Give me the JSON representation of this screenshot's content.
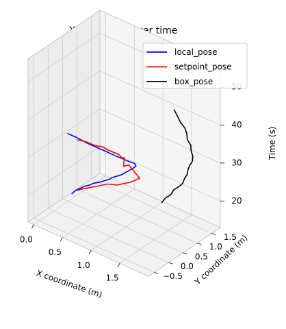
{
  "chart_data": {
    "type": "line",
    "projection": "3d",
    "title": "X, Y location over time",
    "xlabel": "X coordinate (m)",
    "ylabel": "Y coordinate (m)",
    "zlabel": "Time (s)",
    "xlim": [
      -0.1,
      2.0
    ],
    "ylim": [
      -0.7,
      1.8
    ],
    "zlim": [
      13,
      56
    ],
    "x_ticks": [
      "0.0",
      "0.5",
      "1.0",
      "1.5"
    ],
    "y_ticks": [
      "−0.5",
      "0.0",
      "0.5",
      "1.0",
      "1.5"
    ],
    "z_ticks": [
      "20",
      "30",
      "40",
      "50"
    ],
    "grid": true,
    "legend_position": "top-right",
    "series": [
      {
        "name": "local_pose",
        "color": "#0000ff",
        "points": [
          [
            0.04,
            0.55,
            15.0
          ],
          [
            0.06,
            0.63,
            15.6
          ],
          [
            0.1,
            0.72,
            16.0
          ],
          [
            0.13,
            0.8,
            16.3
          ],
          [
            0.18,
            0.86,
            16.6
          ],
          [
            0.22,
            0.94,
            17.0
          ],
          [
            0.28,
            1.0,
            17.3
          ],
          [
            0.33,
            1.02,
            17.8
          ],
          [
            0.38,
            1.05,
            18.3
          ],
          [
            0.42,
            1.09,
            18.6
          ],
          [
            0.45,
            1.12,
            19.1
          ],
          [
            0.5,
            1.18,
            19.5
          ],
          [
            0.55,
            1.28,
            19.8
          ],
          [
            0.58,
            1.32,
            20.3
          ],
          [
            0.62,
            1.39,
            20.8
          ],
          [
            0.66,
            1.46,
            21.4
          ],
          [
            0.68,
            1.5,
            21.8
          ],
          [
            0.66,
            1.49,
            22.4
          ],
          [
            0.63,
            1.43,
            22.8
          ],
          [
            0.59,
            1.36,
            23.3
          ],
          [
            0.55,
            1.28,
            24.0
          ],
          [
            0.51,
            1.2,
            24.6
          ],
          [
            0.47,
            1.12,
            25.3
          ],
          [
            0.43,
            1.04,
            26.0
          ],
          [
            0.39,
            0.96,
            26.7
          ],
          [
            0.35,
            0.88,
            27.3
          ],
          [
            0.31,
            0.8,
            28.0
          ],
          [
            0.27,
            0.72,
            28.7
          ],
          [
            0.23,
            0.64,
            29.4
          ],
          [
            0.19,
            0.57,
            30.1
          ],
          [
            0.14,
            0.5,
            30.8
          ],
          [
            0.1,
            0.43,
            31.4
          ],
          [
            0.06,
            0.36,
            32.0
          ]
        ]
      },
      {
        "name": "setpoint_pose",
        "color": "#ff0000",
        "points": [
          [
            0.09,
            0.64,
            15.8
          ],
          [
            0.18,
            0.66,
            16.7
          ],
          [
            0.29,
            0.83,
            17.1
          ],
          [
            0.43,
            1.0,
            17.9
          ],
          [
            0.58,
            1.05,
            18.4
          ],
          [
            0.72,
            1.23,
            19.2
          ],
          [
            0.8,
            1.39,
            19.9
          ],
          [
            0.56,
            1.49,
            21.3
          ],
          [
            0.55,
            1.33,
            21.7
          ],
          [
            0.55,
            1.35,
            23.9
          ],
          [
            0.58,
            1.23,
            24.5
          ],
          [
            0.52,
            1.21,
            25.3
          ],
          [
            0.41,
            1.03,
            26.7
          ],
          [
            0.36,
            0.99,
            27.3
          ],
          [
            0.3,
            0.85,
            27.9
          ],
          [
            0.23,
            0.65,
            29.5
          ],
          [
            0.15,
            0.52,
            30.1
          ]
        ]
      },
      {
        "name": "box_pose",
        "color": "#000000",
        "points": [
          [
            1.07,
            1.62,
            14.2
          ],
          [
            1.12,
            1.65,
            15.6
          ],
          [
            1.2,
            1.68,
            16.9
          ],
          [
            1.24,
            1.69,
            18.3
          ],
          [
            1.32,
            1.72,
            19.6
          ],
          [
            1.39,
            1.71,
            21.0
          ],
          [
            1.42,
            1.71,
            22.4
          ],
          [
            1.46,
            1.72,
            23.7
          ],
          [
            1.48,
            1.71,
            25.1
          ],
          [
            1.5,
            1.74,
            26.4
          ],
          [
            1.55,
            1.73,
            27.8
          ],
          [
            1.55,
            1.74,
            29.1
          ],
          [
            1.53,
            1.72,
            30.5
          ],
          [
            1.52,
            1.73,
            31.8
          ],
          [
            1.48,
            1.69,
            33.2
          ],
          [
            1.46,
            1.71,
            34.6
          ],
          [
            1.43,
            1.7,
            35.9
          ],
          [
            1.37,
            1.66,
            37.3
          ],
          [
            1.32,
            1.66,
            38.6
          ],
          [
            1.28,
            1.63,
            40.0
          ]
        ]
      }
    ]
  }
}
